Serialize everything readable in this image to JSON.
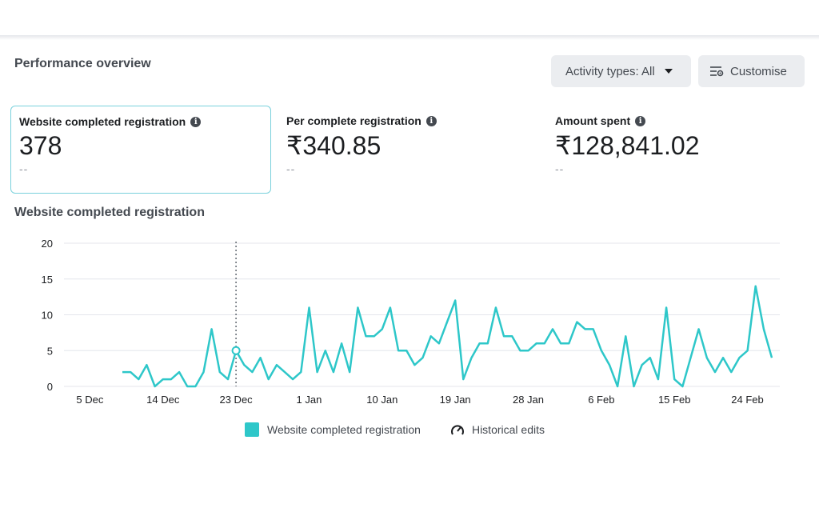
{
  "header": {
    "title": "Performance overview",
    "activity_label": "Activity types: All",
    "customise_label": "Customise"
  },
  "metrics": [
    {
      "label": "Website completed registration",
      "value": "378",
      "compare": "--"
    },
    {
      "label": "Per complete registration",
      "value": "₹340.85",
      "compare": "--"
    },
    {
      "label": "Amount spent",
      "value": "₹128,841.02",
      "compare": "--"
    }
  ],
  "chart_title": "Website completed registration",
  "legend": {
    "series_label": "Website completed registration",
    "edits_label": "Historical edits"
  },
  "colors": {
    "series": "#2ec7c9",
    "grid": "#e4e6eb"
  },
  "chart_data": {
    "type": "line",
    "title": "Website completed registration",
    "xlabel": "",
    "ylabel": "",
    "ylim": [
      0,
      20
    ],
    "yticks": [
      "0",
      "5",
      "10",
      "15",
      "20"
    ],
    "xticks": [
      "5 Dec",
      "14 Dec",
      "23 Dec",
      "1 Jan",
      "10 Jan",
      "19 Jan",
      "28 Jan",
      "6 Feb",
      "15 Feb",
      "24 Feb"
    ],
    "highlight_date": "23 Dec",
    "series": [
      {
        "name": "Website completed registration",
        "x": [
          "9 Dec",
          "10 Dec",
          "11 Dec",
          "12 Dec",
          "13 Dec",
          "14 Dec",
          "15 Dec",
          "16 Dec",
          "17 Dec",
          "18 Dec",
          "19 Dec",
          "20 Dec",
          "21 Dec",
          "22 Dec",
          "23 Dec",
          "24 Dec",
          "25 Dec",
          "26 Dec",
          "27 Dec",
          "28 Dec",
          "29 Dec",
          "30 Dec",
          "31 Dec",
          "1 Jan",
          "2 Jan",
          "3 Jan",
          "4 Jan",
          "5 Jan",
          "6 Jan",
          "7 Jan",
          "8 Jan",
          "9 Jan",
          "10 Jan",
          "11 Jan",
          "12 Jan",
          "13 Jan",
          "14 Jan",
          "15 Jan",
          "16 Jan",
          "17 Jan",
          "18 Jan",
          "19 Jan",
          "20 Jan",
          "21 Jan",
          "22 Jan",
          "23 Jan",
          "24 Jan",
          "25 Jan",
          "26 Jan",
          "27 Jan",
          "28 Jan",
          "29 Jan",
          "30 Jan",
          "31 Jan",
          "1 Feb",
          "2 Feb",
          "3 Feb",
          "4 Feb",
          "5 Feb",
          "6 Feb",
          "7 Feb",
          "8 Feb",
          "9 Feb",
          "10 Feb",
          "11 Feb",
          "12 Feb",
          "13 Feb",
          "14 Feb",
          "15 Feb",
          "16 Feb",
          "17 Feb",
          "18 Feb",
          "19 Feb",
          "20 Feb",
          "21 Feb",
          "22 Feb",
          "23 Feb",
          "24 Feb",
          "25 Feb",
          "26 Feb",
          "27 Feb"
        ],
        "values": [
          2,
          2,
          1,
          3,
          0,
          1,
          1,
          2,
          0,
          0,
          2,
          8,
          2,
          1,
          5,
          3,
          2,
          4,
          1,
          3,
          2,
          1,
          2,
          11,
          2,
          5,
          2,
          6,
          2,
          11,
          7,
          7,
          8,
          11,
          5,
          5,
          3,
          4,
          7,
          6,
          9,
          12,
          1,
          4,
          6,
          6,
          11,
          7,
          7,
          5,
          5,
          6,
          6,
          8,
          6,
          6,
          9,
          8,
          8,
          5,
          3,
          0,
          7,
          0,
          3,
          4,
          1,
          11,
          1,
          0,
          4,
          8,
          4,
          2,
          4,
          2,
          4,
          5,
          14,
          8,
          4
        ]
      }
    ]
  }
}
